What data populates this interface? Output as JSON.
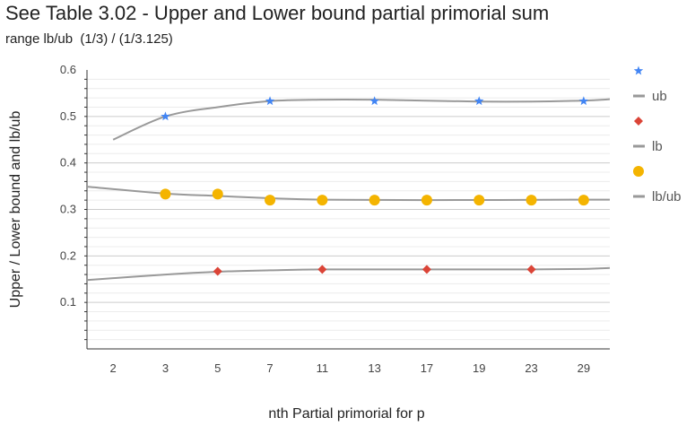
{
  "chart_data": {
    "type": "scatter",
    "title": "See Table 3.02 - Upper and Lower bound partial primorial sum",
    "subtitle": "range lb/ub  (1/3) / (1/3.125)",
    "xlabel": "nth Partial primorial for p",
    "ylabel": "Upper / Lower bound and lb/ub",
    "categories": [
      "2",
      "3",
      "5",
      "7",
      "11",
      "13",
      "17",
      "19",
      "23",
      "29"
    ],
    "ylim": [
      0,
      0.6
    ],
    "yticks": [
      0.1,
      0.2,
      0.3,
      0.4,
      0.5,
      0.6
    ],
    "grid": true,
    "legend_position": "right",
    "series": [
      {
        "name": "",
        "marker": "star",
        "color": "#4285f4",
        "points": [
          [
            "3",
            0.5
          ],
          [
            "7",
            0.533
          ],
          [
            "13",
            0.533
          ],
          [
            "19",
            0.533
          ],
          [
            "29",
            0.533
          ]
        ]
      },
      {
        "name": "ub",
        "kind": "trendline",
        "color": "#999999",
        "points": [
          [
            "2",
            0.45
          ],
          [
            "3",
            0.5
          ],
          [
            "5",
            0.52
          ],
          [
            "7",
            0.533
          ],
          [
            "11",
            0.536
          ],
          [
            "13",
            0.536
          ],
          [
            "17",
            0.534
          ],
          [
            "19",
            0.532
          ],
          [
            "23",
            0.532
          ],
          [
            "29",
            0.534
          ],
          [
            "end",
            0.537
          ]
        ]
      },
      {
        "name": "",
        "marker": "diamond",
        "color": "#db4437",
        "points": [
          [
            "5",
            0.167
          ],
          [
            "11",
            0.171
          ],
          [
            "17",
            0.171
          ],
          [
            "23",
            0.171
          ]
        ]
      },
      {
        "name": "lb",
        "kind": "trendline",
        "color": "#999999",
        "points": [
          [
            "start",
            0.148
          ],
          [
            "3",
            0.16
          ],
          [
            "5",
            0.166
          ],
          [
            "7",
            0.169
          ],
          [
            "11",
            0.171
          ],
          [
            "17",
            0.171
          ],
          [
            "23",
            0.171
          ],
          [
            "29",
            0.172
          ],
          [
            "end",
            0.174
          ]
        ]
      },
      {
        "name": "",
        "marker": "circle",
        "color": "#f4b400",
        "points": [
          [
            "3",
            0.333
          ],
          [
            "5",
            0.333
          ],
          [
            "7",
            0.32
          ],
          [
            "11",
            0.32
          ],
          [
            "13",
            0.32
          ],
          [
            "17",
            0.32
          ],
          [
            "19",
            0.32
          ],
          [
            "23",
            0.32
          ],
          [
            "29",
            0.32
          ]
        ]
      },
      {
        "name": "lb/ub",
        "kind": "trendline",
        "color": "#999999",
        "points": [
          [
            "start",
            0.349
          ],
          [
            "3",
            0.334
          ],
          [
            "5",
            0.329
          ],
          [
            "7",
            0.324
          ],
          [
            "11",
            0.321
          ],
          [
            "17",
            0.32
          ],
          [
            "29",
            0.321
          ],
          [
            "end",
            0.321
          ]
        ]
      }
    ]
  }
}
